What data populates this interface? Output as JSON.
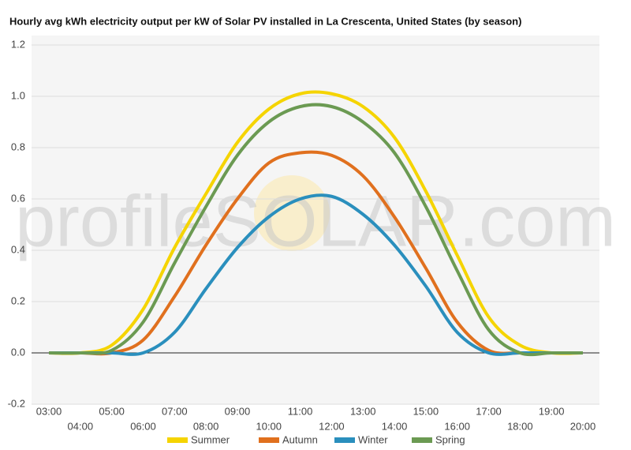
{
  "chart_data": {
    "type": "line",
    "title": "Hourly avg kWh electricity output per kW of Solar PV installed in La Crescenta, United States (by season)",
    "watermark": "profileSOLAR.com",
    "categories": [
      "03:00",
      "04:00",
      "05:00",
      "06:00",
      "07:00",
      "08:00",
      "09:00",
      "10:00",
      "11:00",
      "12:00",
      "13:00",
      "14:00",
      "15:00",
      "16:00",
      "17:00",
      "18:00",
      "19:00",
      "20:00"
    ],
    "series": [
      {
        "name": "Summer",
        "color": "#f5d400",
        "values": [
          0,
          0,
          0.03,
          0.17,
          0.41,
          0.62,
          0.82,
          0.95,
          1.01,
          1.01,
          0.96,
          0.84,
          0.63,
          0.38,
          0.14,
          0.03,
          0,
          0
        ]
      },
      {
        "name": "Autumn",
        "color": "#e0701e",
        "values": [
          0,
          0,
          0,
          0.05,
          0.22,
          0.42,
          0.6,
          0.74,
          0.78,
          0.77,
          0.69,
          0.53,
          0.33,
          0.12,
          0.01,
          0,
          0,
          0
        ]
      },
      {
        "name": "Winter",
        "color": "#2a8fbd",
        "values": [
          0,
          0,
          0,
          0,
          0.08,
          0.25,
          0.41,
          0.53,
          0.6,
          0.61,
          0.54,
          0.42,
          0.26,
          0.08,
          0,
          0,
          0,
          0
        ]
      },
      {
        "name": "Spring",
        "color": "#6b9a52",
        "values": [
          0,
          0,
          0.01,
          0.12,
          0.35,
          0.57,
          0.77,
          0.9,
          0.96,
          0.96,
          0.9,
          0.78,
          0.57,
          0.32,
          0.09,
          0,
          0,
          0
        ]
      }
    ],
    "ylim": [
      -0.2,
      1.2
    ],
    "yticks": [
      -0.2,
      {
        "value": 0,
        "label": "0.0"
      },
      0.2,
      0.4,
      0.6,
      0.8,
      {
        "value": 1,
        "label": "1.0"
      },
      1.2
    ],
    "grid": true,
    "legend": "bottom"
  }
}
